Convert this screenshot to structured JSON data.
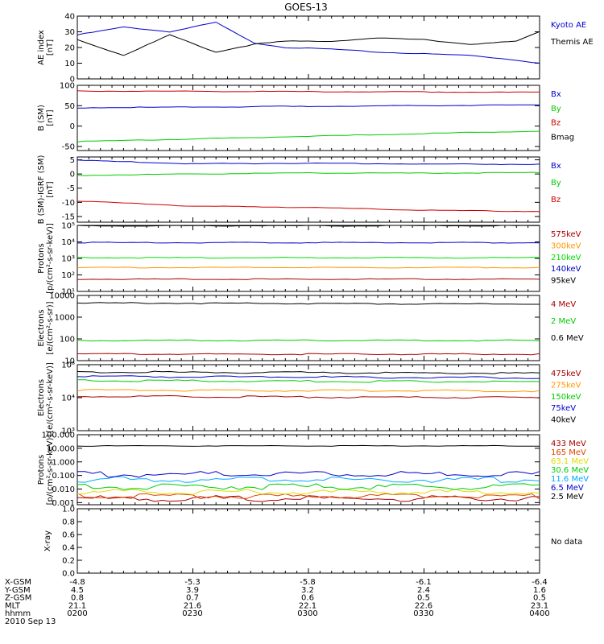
{
  "title": "GOES-13",
  "chart_data": [
    {
      "id": "ae",
      "type": "line",
      "ylabel": [
        "AE index",
        "[nT]"
      ],
      "scale": "linear",
      "ylim": [
        0,
        40
      ],
      "ticks": [
        0,
        10,
        20,
        30,
        40
      ],
      "tick_labels": [
        "0",
        "10",
        "20",
        "30",
        "40"
      ],
      "x": [
        0,
        0.1,
        0.2,
        0.3,
        0.38,
        0.45,
        0.55,
        0.65,
        0.75,
        0.85,
        0.95,
        1.0
      ],
      "series": [
        {
          "name": "Kyoto AE",
          "color": "#0000cc",
          "values": [
            28,
            33,
            30,
            36,
            23,
            20,
            19,
            17,
            16,
            15,
            12,
            10
          ]
        },
        {
          "name": "Themis AE",
          "color": "#000000",
          "values": [
            25,
            15,
            28,
            17,
            22,
            24,
            24,
            26,
            25,
            22,
            24,
            30
          ]
        }
      ]
    },
    {
      "id": "bsm",
      "type": "line",
      "ylabel": [
        "B (SM)",
        "[nT]"
      ],
      "scale": "linear",
      "ylim": [
        -60,
        100
      ],
      "ticks": [
        -50,
        0,
        50,
        100
      ],
      "tick_labels": [
        "-50",
        "0",
        "50",
        "100"
      ],
      "x": [
        0,
        1
      ],
      "series": [
        {
          "name": "Bx",
          "color": "#0000cc",
          "values": [
            45,
            52
          ]
        },
        {
          "name": "By",
          "color": "#00cc00",
          "values": [
            -38,
            -12
          ]
        },
        {
          "name": "Bz",
          "color": "#cc0000",
          "values": [
            86,
            83
          ]
        },
        {
          "name": "Bmag",
          "color": "#000000",
          "values": [
            102,
            101
          ]
        }
      ]
    },
    {
      "id": "bigrf",
      "type": "line",
      "ylabel": [
        "B (SM)-IGRF (SM)",
        "[nT]"
      ],
      "scale": "linear",
      "ylim": [
        -17,
        6
      ],
      "ticks": [
        -15,
        -10,
        -5,
        0,
        5
      ],
      "tick_labels": [
        "-15",
        "-10",
        "-5",
        "0",
        "5"
      ],
      "x": [
        0,
        0.25,
        0.5,
        0.75,
        1
      ],
      "series": [
        {
          "name": "Bx",
          "color": "#0000cc",
          "values": [
            4.8,
            3.6,
            3.8,
            3.5,
            3.4
          ]
        },
        {
          "name": "By",
          "color": "#00cc00",
          "values": [
            -0.5,
            0,
            0.4,
            0.3,
            0.5
          ]
        },
        {
          "name": "Bz",
          "color": "#cc0000",
          "values": [
            -9.5,
            -11.3,
            -11.8,
            -12.8,
            -13.2
          ]
        }
      ]
    },
    {
      "id": "protons_kev",
      "type": "line",
      "ylabel": [
        "Protons",
        "[p/(cm²-s-sr-keV)]"
      ],
      "scale": "log",
      "ylim": [
        10,
        100000
      ],
      "ticks": [
        10,
        100,
        1000,
        10000,
        100000
      ],
      "tick_labels": [
        "10¹",
        "10²",
        "10³",
        "10⁴",
        "10⁵"
      ],
      "x": [
        0,
        1
      ],
      "series": [
        {
          "name": "575keV",
          "color": "#aa0000",
          "values": [
            55,
            55
          ]
        },
        {
          "name": "300keV",
          "color": "#ff9900",
          "values": [
            280,
            280
          ]
        },
        {
          "name": "210keV",
          "color": "#00dd00",
          "values": [
            1100,
            1100
          ]
        },
        {
          "name": "140keV",
          "color": "#0000cc",
          "values": [
            9000,
            9000
          ]
        },
        {
          "name": "95keV",
          "color": "#000000",
          "values": [
            95000,
            95000
          ]
        }
      ]
    },
    {
      "id": "electrons_mev",
      "type": "line",
      "ylabel": [
        "Electrons",
        "[e/(cm²-s-sr)]"
      ],
      "scale": "log",
      "ylim": [
        10,
        10000
      ],
      "ticks": [
        10,
        100,
        1000,
        10000
      ],
      "tick_labels": [
        "10",
        "100",
        "1000",
        "10000"
      ],
      "x": [
        0,
        1
      ],
      "series": [
        {
          "name": "4 MeV",
          "color": "#aa0000",
          "values": [
            20,
            20
          ]
        },
        {
          "name": "2 MeV",
          "color": "#00cc00",
          "values": [
            85,
            85
          ]
        },
        {
          "name": "0.6 MeV",
          "color": "#000000",
          "values": [
            4500,
            4000
          ]
        }
      ]
    },
    {
      "id": "electrons_kev",
      "type": "line",
      "ylabel": [
        "Electrons",
        "[e/(cm²-s-sr-keV)]"
      ],
      "scale": "log",
      "ylim": [
        1000,
        100000
      ],
      "ticks": [
        1000,
        10000,
        100000
      ],
      "tick_labels": [
        "10³",
        "10⁴",
        "10⁵"
      ],
      "x": [
        0,
        1
      ],
      "series": [
        {
          "name": "475keV",
          "color": "#aa0000",
          "values": [
            11000,
            10000
          ]
        },
        {
          "name": "275keV",
          "color": "#ff9900",
          "values": [
            17000,
            16000
          ]
        },
        {
          "name": "150keV",
          "color": "#00cc00",
          "values": [
            33000,
            30000
          ]
        },
        {
          "name": "75keV",
          "color": "#0000cc",
          "values": [
            44000,
            40000
          ]
        },
        {
          "name": "40keV",
          "color": "#000000",
          "values": [
            60000,
            55000
          ]
        }
      ]
    },
    {
      "id": "protons_mev",
      "type": "line",
      "ylabel": [
        "Protons",
        "[p/(cm²-s-sr-keV)]"
      ],
      "scale": "log",
      "ylim": [
        0.0007,
        100
      ],
      "ticks": [
        0.001,
        0.01,
        0.1,
        1,
        10,
        100
      ],
      "tick_labels": [
        "0.001",
        "0.010",
        "0.100",
        "1.000",
        "10.000",
        "100.000"
      ],
      "x": [
        0,
        1
      ],
      "series": [
        {
          "name": "433 MeV",
          "color": "#aa0000",
          "values": [
            0.002,
            0.002
          ]
        },
        {
          "name": "165 MeV",
          "color": "#dd4400",
          "values": [
            0.003,
            0.003
          ]
        },
        {
          "name": "63.1 MeV",
          "color": "#dddd00",
          "values": [
            0.006,
            0.006
          ]
        },
        {
          "name": "30.6 MeV",
          "color": "#00cc00",
          "values": [
            0.015,
            0.015
          ]
        },
        {
          "name": "11.6 MeV",
          "color": "#00aaff",
          "values": [
            0.05,
            0.05
          ]
        },
        {
          "name": "6.5 MeV",
          "color": "#0000cc",
          "values": [
            0.12,
            0.12
          ]
        },
        {
          "name": "2.5 MeV",
          "color": "#000000",
          "values": [
            15,
            15
          ]
        }
      ]
    },
    {
      "id": "xray",
      "type": "line",
      "ylabel": [
        "X-ray"
      ],
      "scale": "linear",
      "ylim": [
        0,
        1
      ],
      "ticks": [
        0,
        0.2,
        0.4,
        0.6,
        0.8,
        1.0
      ],
      "tick_labels": [
        "0.0",
        "0.2",
        "0.4",
        "0.6",
        "0.8",
        "1.0"
      ],
      "x": [],
      "series": [],
      "note": "No data"
    }
  ],
  "footer": {
    "rows": [
      {
        "label": "X-GSM",
        "values": [
          "-4.8",
          "-5.3",
          "-5.8",
          "-6.1",
          "-6.4"
        ]
      },
      {
        "label": "Y-GSM",
        "values": [
          "4.5",
          "3.9",
          "3.2",
          "2.4",
          "1.6"
        ]
      },
      {
        "label": "Z-GSM",
        "values": [
          "0.8",
          "0.7",
          "0.6",
          "0.5",
          "0.5"
        ]
      },
      {
        "label": "MLT",
        "values": [
          "21.1",
          "21.6",
          "22.1",
          "22.6",
          "23.1"
        ]
      },
      {
        "label": "hhmm",
        "values": [
          "0200",
          "0230",
          "0300",
          "0330",
          "0400"
        ]
      }
    ],
    "date": "2010 Sep 13"
  }
}
